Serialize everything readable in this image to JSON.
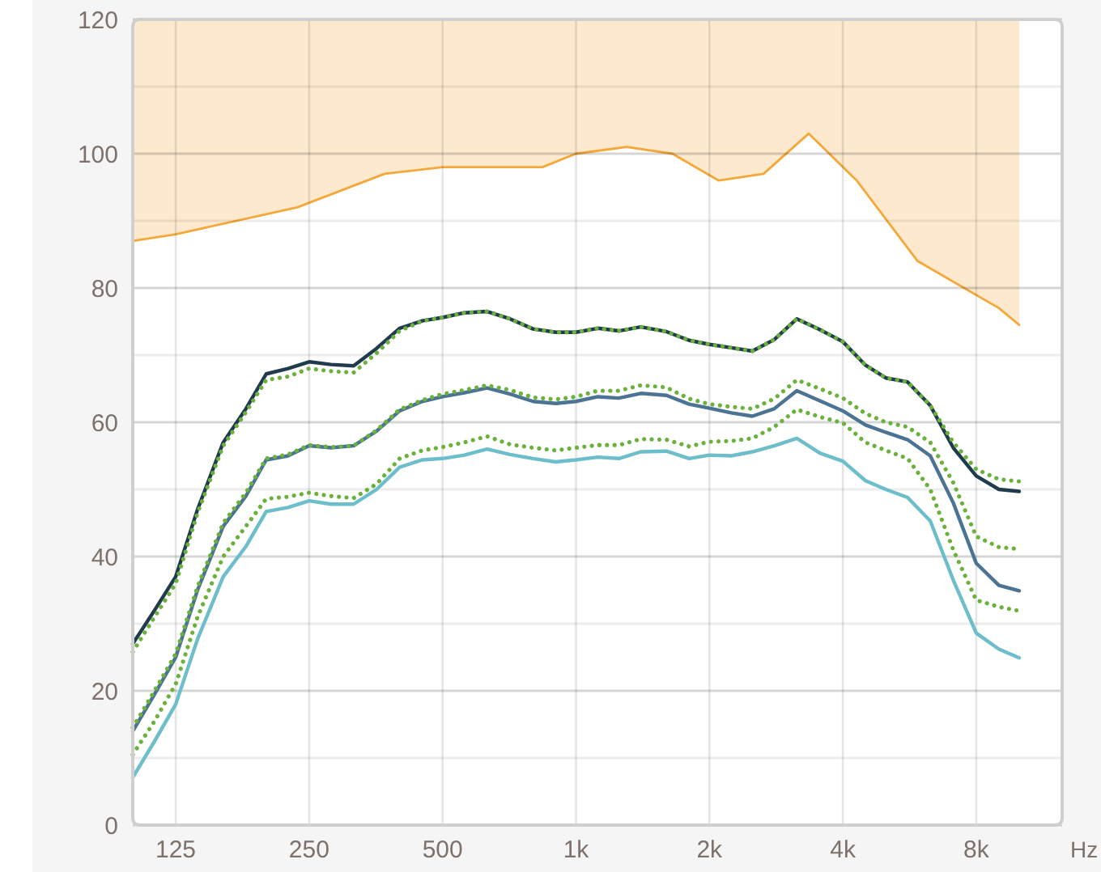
{
  "chart_data": {
    "type": "line",
    "xlabel": "Hz",
    "log": "x",
    "xlim": [
      100,
      12500
    ],
    "ylim": [
      0,
      120
    ],
    "xticks": [
      125,
      250,
      500,
      {
        "value": 1000,
        "label": "1k"
      },
      {
        "value": 2000,
        "label": "2k"
      },
      {
        "value": 4000,
        "label": "4k"
      },
      {
        "value": 8000,
        "label": "8k"
      }
    ],
    "yticks": [
      0,
      {
        "value": 10,
        "label": null
      },
      20,
      {
        "value": 30,
        "label": null
      },
      40,
      {
        "value": 50,
        "label": null
      },
      60,
      {
        "value": 70,
        "label": null
      },
      80,
      {
        "value": 90,
        "label": null
      },
      100,
      {
        "value": 110,
        "label": null
      },
      120
    ],
    "grid": true,
    "x": [
      100,
      112,
      125,
      140,
      160,
      180,
      200,
      224,
      250,
      280,
      315,
      355,
      400,
      450,
      500,
      560,
      630,
      710,
      800,
      900,
      1000,
      1120,
      1250,
      1400,
      1600,
      1800,
      2000,
      2240,
      2500,
      2800,
      3150,
      3550,
      4000,
      4500,
      5000,
      5600,
      6300,
      7100,
      8000,
      9000,
      10000
    ],
    "series": [
      {
        "color": "#f5a83a",
        "x": [
          100,
          125,
          235,
          370,
          500,
          840,
          1000,
          1300,
          1650,
          2100,
          2650,
          3350,
          4300,
          5900,
          9000,
          10000
        ],
        "values": [
          87,
          88,
          92,
          97,
          98,
          98,
          100,
          101,
          100,
          96,
          97,
          103,
          96,
          84,
          77,
          74.5
        ],
        "lower": [
          87,
          88,
          92,
          97,
          98,
          98,
          100,
          101,
          100,
          96,
          97,
          103,
          96,
          84,
          77,
          74.5
        ],
        "upper": [
          120,
          120,
          120,
          120,
          120,
          120,
          120,
          120,
          120,
          120,
          120,
          120,
          120,
          120,
          120,
          120
        ]
      },
      {
        "color": "#213b4e",
        "values": [
          27,
          32,
          37,
          47,
          57,
          62,
          67.2,
          68,
          69,
          68.6,
          68.4,
          71,
          74,
          75.1,
          75.6,
          76.3,
          76.5,
          75.4,
          73.9,
          73.4,
          73.4,
          74,
          73.6,
          74.2,
          73.5,
          72.2,
          71.6,
          71.1,
          70.6,
          72.3,
          75.4,
          73.8,
          72,
          68.5,
          66.6,
          66,
          62.5,
          56.2,
          52,
          50,
          49.7
        ]
      },
      {
        "color": "#4b7393",
        "values": [
          14,
          19.5,
          25,
          35,
          44.5,
          49,
          54.4,
          55,
          56.5,
          56.2,
          56.5,
          58.7,
          61.7,
          63.1,
          63.8,
          64.4,
          65.1,
          64.2,
          63.1,
          62.8,
          63.1,
          63.8,
          63.6,
          64.3,
          64,
          62.7,
          62.1,
          61.4,
          60.9,
          62,
          64.7,
          63.2,
          61.7,
          59.6,
          58.5,
          57.4,
          55,
          48,
          39,
          35.7,
          34.9
        ]
      },
      {
        "color": "#6dbecb",
        "values": [
          7.1,
          12.5,
          18,
          27.7,
          37,
          41.5,
          46.7,
          47.3,
          48.3,
          47.8,
          47.8,
          50,
          53.3,
          54.4,
          54.6,
          55.1,
          56,
          55.2,
          54.6,
          54.1,
          54.4,
          54.8,
          54.6,
          55.6,
          55.7,
          54.6,
          55.1,
          55,
          55.6,
          56.5,
          57.6,
          55.4,
          54.2,
          51.3,
          50,
          48.8,
          45.3,
          36.5,
          28.6,
          26.2,
          24.9
        ]
      },
      {
        "color": "#6ab23c",
        "line_style": "dotted",
        "values": [
          25.8,
          31,
          36,
          46.5,
          56.5,
          61.5,
          66.3,
          66.8,
          68,
          67.6,
          67.4,
          70.3,
          73.6,
          75.1,
          75.6,
          76.3,
          76.5,
          75.4,
          73.9,
          73.4,
          73.4,
          74,
          73.6,
          74.2,
          73.5,
          72.2,
          71.6,
          71.1,
          70.6,
          72.3,
          75.4,
          73.8,
          72,
          68.5,
          66.6,
          66,
          62.5,
          57,
          53,
          51.5,
          51.2
        ]
      },
      {
        "color": "#6ab23c",
        "line_style": "dotted",
        "values": [
          14.5,
          20,
          25.5,
          35.5,
          45,
          49.5,
          54.6,
          55.2,
          56.6,
          56.3,
          56.5,
          58.8,
          61.9,
          63.3,
          64.2,
          64.8,
          65.5,
          64.8,
          63.7,
          63.4,
          63.8,
          64.7,
          64.7,
          65.5,
          65.2,
          63.5,
          62.7,
          62.3,
          62,
          63.5,
          66.3,
          65,
          63.6,
          61.3,
          60,
          59.3,
          57,
          51,
          43,
          41.4,
          41.1
        ]
      },
      {
        "color": "#6ab23c",
        "line_style": "dotted",
        "values": [
          10.5,
          15.5,
          21,
          31,
          40,
          44.5,
          48.6,
          48.9,
          49.5,
          49,
          48.7,
          50.8,
          54.6,
          55.8,
          56.3,
          57,
          57.9,
          56.7,
          56.2,
          55.8,
          56.2,
          56.6,
          56.6,
          57.5,
          57.4,
          56.4,
          57.1,
          57.2,
          57.6,
          59.3,
          61.9,
          60.8,
          59.9,
          57,
          55.8,
          54.6,
          50,
          41,
          33.5,
          32.5,
          31.9
        ]
      }
    ]
  }
}
